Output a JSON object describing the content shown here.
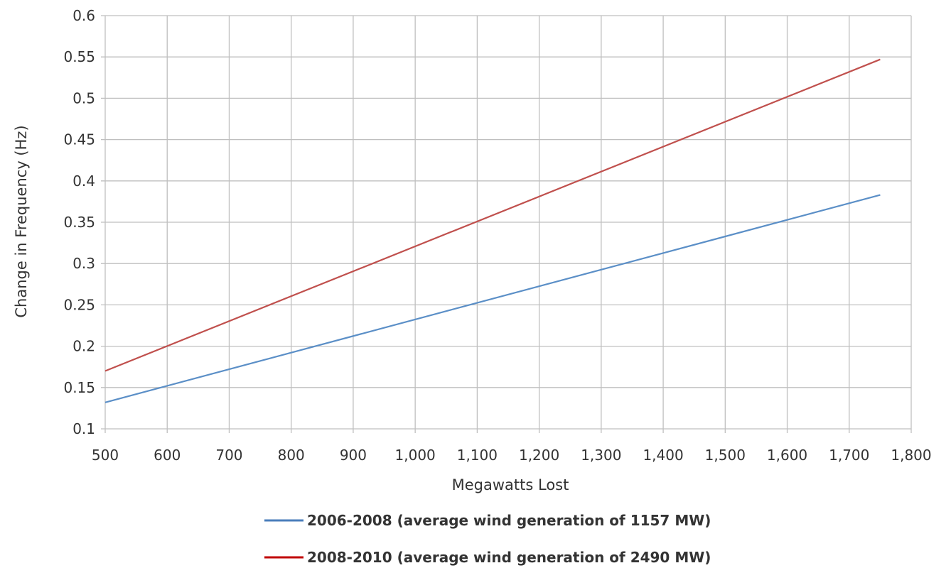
{
  "chart_data": {
    "type": "line",
    "title": "",
    "xlabel": "Megawatts Lost",
    "ylabel": "Change in Frequency (Hz)",
    "xlim": [
      500,
      1800
    ],
    "ylim": [
      0.1,
      0.6
    ],
    "x_ticks": [
      500,
      600,
      700,
      800,
      900,
      1000,
      1100,
      1200,
      1300,
      1400,
      1500,
      1600,
      1700,
      1800
    ],
    "x_tick_labels": [
      "500",
      "600",
      "700",
      "800",
      "900",
      "1,000",
      "1,100",
      "1,200",
      "1,300",
      "1,400",
      "1,500",
      "1,600",
      "1,700",
      "1,800"
    ],
    "y_ticks": [
      0.1,
      0.15,
      0.2,
      0.25,
      0.3,
      0.35,
      0.4,
      0.45,
      0.5,
      0.55,
      0.6
    ],
    "y_tick_labels": [
      "0.1",
      "0.15",
      "0.2",
      "0.25",
      "0.3",
      "0.35",
      "0.4",
      "0.45",
      "0.5",
      "0.55",
      "0.6"
    ],
    "grid": true,
    "legend_position": "bottom",
    "series": [
      {
        "name": "2006-2008 (average wind generation of 1157 MW)",
        "color": "#5b8fc7",
        "x": [
          500,
          1750
        ],
        "y": [
          0.132,
          0.383
        ]
      },
      {
        "name": "2008-2010 (average wind generation of 2490 MW)",
        "color": "#c0504d",
        "x": [
          500,
          1750
        ],
        "y": [
          0.17,
          0.547
        ]
      }
    ]
  },
  "legend_line_colors": [
    "#4a7ebb",
    "#c00000"
  ]
}
